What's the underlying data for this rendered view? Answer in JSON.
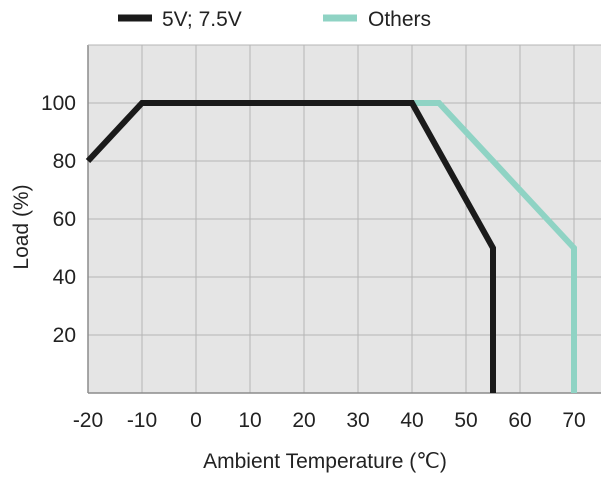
{
  "chart_data": {
    "type": "line",
    "title": "",
    "xlabel": "Ambient Temperature (℃)",
    "ylabel": "Load (%)",
    "xlim": [
      -20,
      75
    ],
    "ylim": [
      0,
      120
    ],
    "x_ticks": [
      -20,
      -10,
      0,
      10,
      20,
      30,
      40,
      50,
      60,
      70
    ],
    "y_ticks": [
      20,
      40,
      60,
      80,
      100
    ],
    "x_tick_labels": [
      "-20",
      "-10",
      "0",
      "10",
      "20",
      "30",
      "40",
      "50",
      "60",
      "70"
    ],
    "y_tick_labels": [
      "20",
      "40",
      "60",
      "80",
      "100"
    ],
    "grid": true,
    "legend_position": "top",
    "series": [
      {
        "name": "5V; 7.5V",
        "color": "#1a1a1a",
        "points": [
          [
            -20,
            80
          ],
          [
            -10,
            100
          ],
          [
            40,
            100
          ],
          [
            55,
            50
          ],
          [
            55,
            0
          ]
        ]
      },
      {
        "name": "Others",
        "color": "#8fd3c4",
        "points": [
          [
            40,
            100
          ],
          [
            45,
            100
          ],
          [
            70,
            50
          ],
          [
            70,
            0
          ]
        ]
      }
    ],
    "colors": {
      "plot_background": "#e5e5e5",
      "grid": "#b5b5b5",
      "frame": "#8c8c8c"
    }
  }
}
